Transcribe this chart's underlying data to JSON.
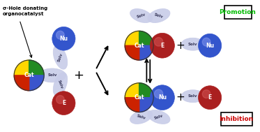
{
  "bg_color": "#ffffff",
  "title_text": "σ-Hole donating\norganocatalyst",
  "promotion_text": "Promotion",
  "inhibition_text": "Inhibition",
  "promotion_color": "#00bb00",
  "inhibition_color": "#cc0000",
  "nu_color_light": "#aabbee",
  "nu_color_dark": "#3355cc",
  "e_color": "#aa2020",
  "solv_color": "#c8cce8",
  "solv_edge": "#8888aa",
  "figsize": [
    3.73,
    1.89
  ],
  "dpi": 100
}
